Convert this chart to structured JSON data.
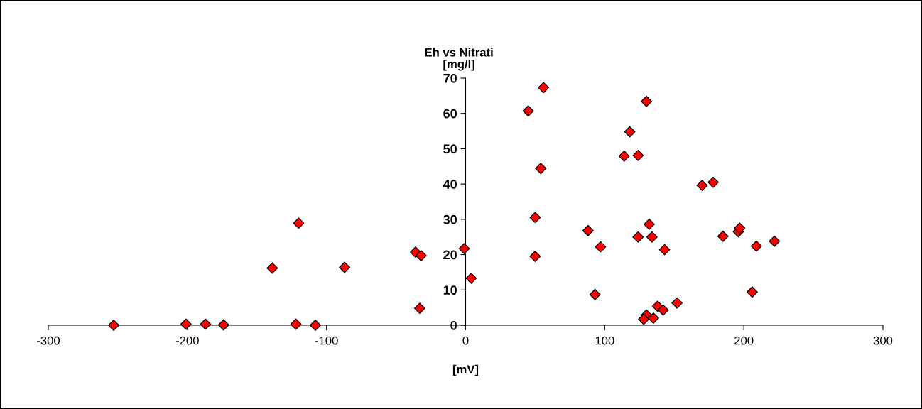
{
  "chart_data": {
    "type": "scatter",
    "title": "Eh vs Nitrati",
    "ylabel": "[mg/l]",
    "xlabel": "[mV]",
    "x": [
      -253,
      -201,
      -187,
      -174,
      -139,
      -120,
      -122,
      -108,
      -87,
      -36,
      -32,
      -33,
      -1,
      4,
      45,
      56,
      54,
      50,
      50,
      88,
      97,
      93,
      114,
      124,
      118,
      130,
      124,
      132,
      134,
      143,
      170,
      178,
      185,
      196,
      197,
      209,
      222,
      206,
      138,
      142,
      152,
      130,
      128,
      135
    ],
    "series": [
      {
        "color": "#ff0000",
        "values": [
          0,
          0.3,
          0.3,
          0.1,
          16.2,
          28.9,
          0.3,
          0,
          16.4,
          20.7,
          19.7,
          4.8,
          21.7,
          13.3,
          60.7,
          67.3,
          44.4,
          30.5,
          19.5,
          26.8,
          22.2,
          8.7,
          47.9,
          48.1,
          54.8,
          63.4,
          25,
          28.6,
          25,
          21.4,
          39.6,
          40.5,
          25.2,
          26.5,
          27.5,
          22.4,
          23.8,
          9.4,
          5.4,
          4.3,
          6.3,
          2.9,
          1.7,
          2
        ]
      }
    ],
    "xlim": [
      -300,
      300
    ],
    "xticks": [
      -300,
      -200,
      -100,
      0,
      100,
      200,
      300
    ],
    "ylim": [
      0,
      70
    ],
    "yticks": [
      0,
      10,
      20,
      30,
      40,
      50,
      60,
      70
    ],
    "marker": "diamond",
    "grid": false,
    "legend": false
  }
}
